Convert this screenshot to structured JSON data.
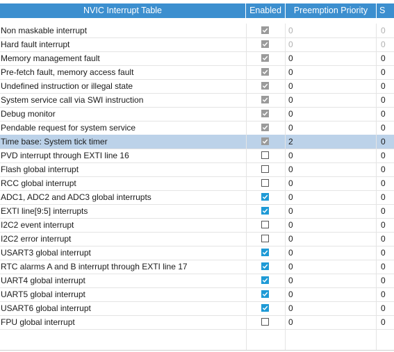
{
  "header": {
    "name": "NVIC Interrupt Table",
    "enabled": "Enabled",
    "preemption": "Preemption Priority",
    "sub": "S"
  },
  "rows": [
    {
      "name": "Non maskable interrupt",
      "enabled": true,
      "fixed": true,
      "preempt": "0",
      "sub": "0",
      "selected": false
    },
    {
      "name": "Hard fault interrupt",
      "enabled": true,
      "fixed": true,
      "preempt": "0",
      "sub": "0",
      "selected": false
    },
    {
      "name": "Memory management fault",
      "enabled": true,
      "fixed": true,
      "preempt": "0",
      "sub": "0",
      "selected": false
    },
    {
      "name": "Pre-fetch fault, memory access fault",
      "enabled": true,
      "fixed": true,
      "preempt": "0",
      "sub": "0",
      "selected": false
    },
    {
      "name": "Undefined instruction or illegal state",
      "enabled": true,
      "fixed": true,
      "preempt": "0",
      "sub": "0",
      "selected": false
    },
    {
      "name": "System service call via SWI instruction",
      "enabled": true,
      "fixed": true,
      "preempt": "0",
      "sub": "0",
      "selected": false
    },
    {
      "name": "Debug monitor",
      "enabled": true,
      "fixed": true,
      "preempt": "0",
      "sub": "0",
      "selected": false
    },
    {
      "name": "Pendable request for system service",
      "enabled": true,
      "fixed": true,
      "preempt": "0",
      "sub": "0",
      "selected": false
    },
    {
      "name": "Time base: System tick timer",
      "enabled": true,
      "fixed": true,
      "preempt": "2",
      "sub": "0",
      "selected": true
    },
    {
      "name": "PVD interrupt through EXTI line 16",
      "enabled": false,
      "fixed": false,
      "preempt": "0",
      "sub": "0",
      "selected": false
    },
    {
      "name": "Flash global interrupt",
      "enabled": false,
      "fixed": false,
      "preempt": "0",
      "sub": "0",
      "selected": false
    },
    {
      "name": "RCC global interrupt",
      "enabled": false,
      "fixed": false,
      "preempt": "0",
      "sub": "0",
      "selected": false
    },
    {
      "name": "ADC1, ADC2 and ADC3 global interrupts",
      "enabled": true,
      "fixed": false,
      "preempt": "0",
      "sub": "0",
      "selected": false
    },
    {
      "name": "EXTI line[9:5] interrupts",
      "enabled": true,
      "fixed": false,
      "preempt": "0",
      "sub": "0",
      "selected": false
    },
    {
      "name": "I2C2 event interrupt",
      "enabled": false,
      "fixed": false,
      "preempt": "0",
      "sub": "0",
      "selected": false
    },
    {
      "name": "I2C2 error interrupt",
      "enabled": false,
      "fixed": false,
      "preempt": "0",
      "sub": "0",
      "selected": false
    },
    {
      "name": "USART3 global interrupt",
      "enabled": true,
      "fixed": false,
      "preempt": "0",
      "sub": "0",
      "selected": false
    },
    {
      "name": "RTC alarms A and B interrupt through EXTI line 17",
      "enabled": true,
      "fixed": false,
      "preempt": "0",
      "sub": "0",
      "selected": false
    },
    {
      "name": "UART4 global interrupt",
      "enabled": true,
      "fixed": false,
      "preempt": "0",
      "sub": "0",
      "selected": false
    },
    {
      "name": "UART5 global interrupt",
      "enabled": true,
      "fixed": false,
      "preempt": "0",
      "sub": "0",
      "selected": false
    },
    {
      "name": "USART6 global interrupt",
      "enabled": true,
      "fixed": false,
      "preempt": "0",
      "sub": "0",
      "selected": false
    },
    {
      "name": "FPU global interrupt",
      "enabled": false,
      "fixed": false,
      "preempt": "0",
      "sub": "0",
      "selected": false
    }
  ],
  "colors": {
    "header_bg": "#3c8fcf",
    "selected_row": "#bcd2e9",
    "checkbox_checked": "#1e9ad6",
    "checkbox_fixed": "#9a9a9a"
  }
}
